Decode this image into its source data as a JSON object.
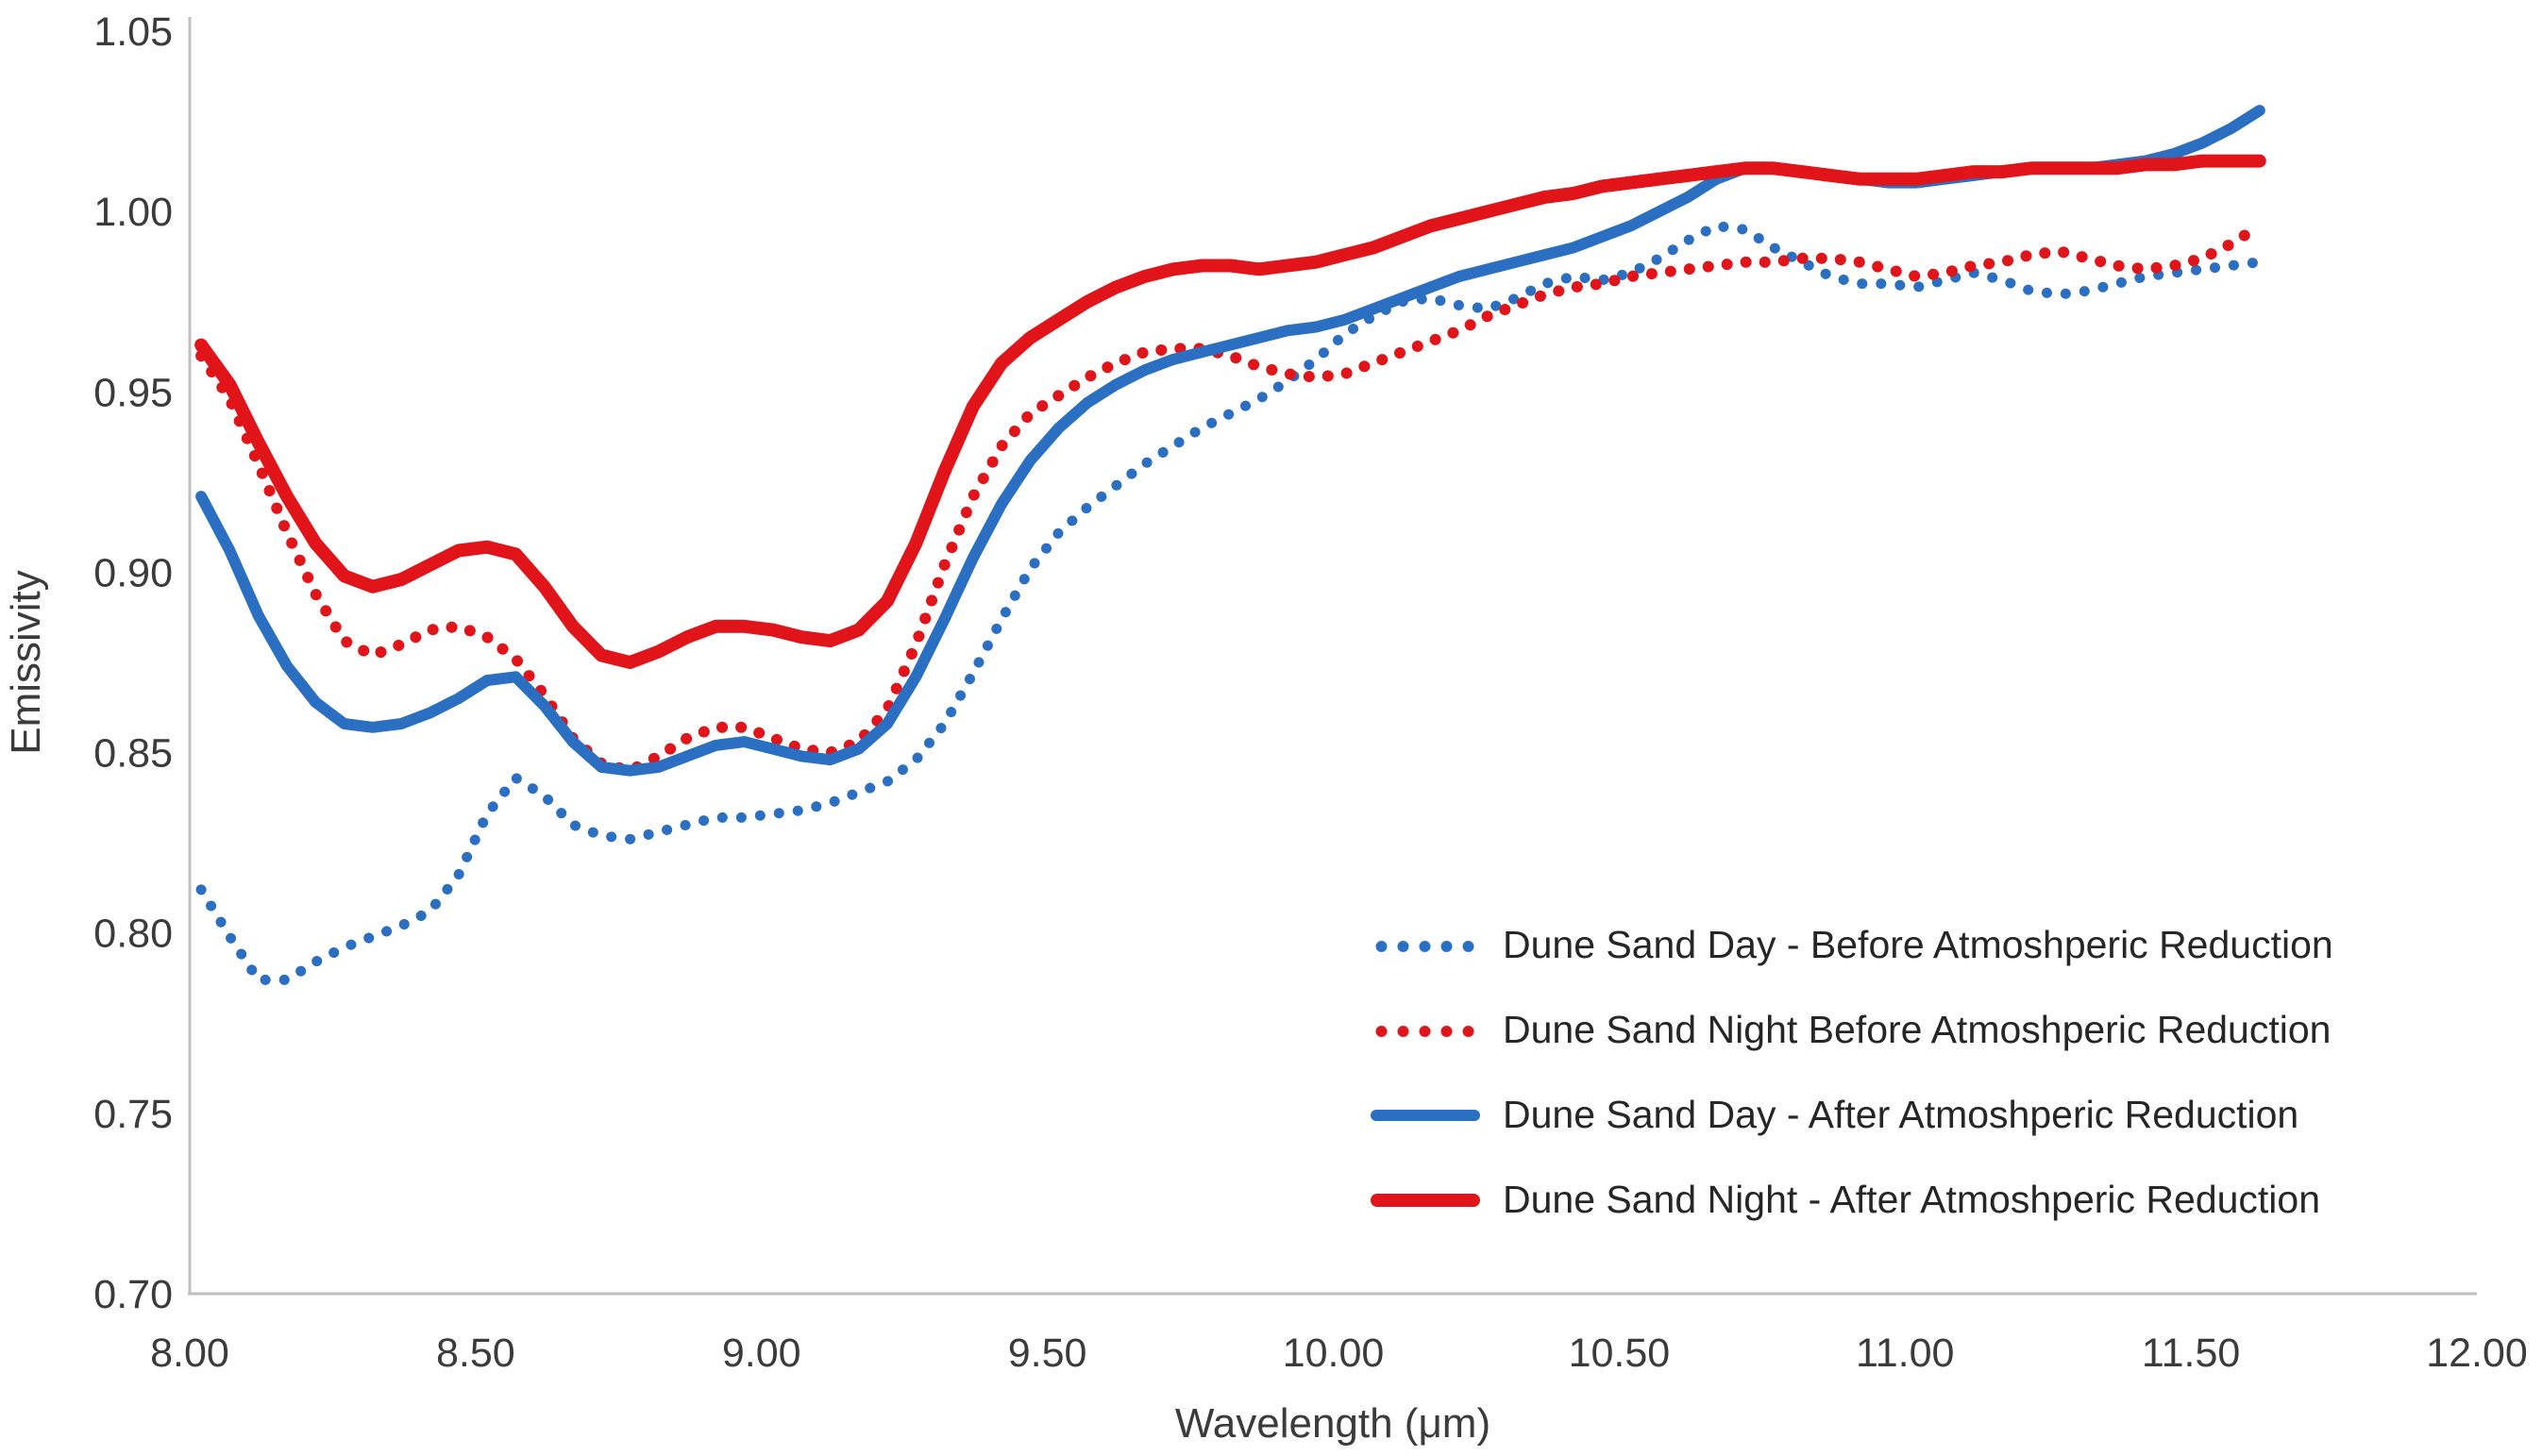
{
  "chart_data": {
    "type": "line",
    "title": "",
    "xlabel": "Wavelength (μm)",
    "ylabel": "Emissivity",
    "xlim": [
      8.0,
      12.0
    ],
    "ylim": [
      0.7,
      1.05
    ],
    "grid": false,
    "legend_position": "right-center",
    "x_ticks": [
      "8.00",
      "8.50",
      "9.00",
      "9.50",
      "10.00",
      "10.50",
      "11.00",
      "11.50",
      "12.00"
    ],
    "y_ticks": [
      "0.70",
      "0.75",
      "0.80",
      "0.85",
      "0.90",
      "0.95",
      "1.00",
      "1.05"
    ],
    "x": [
      8.02,
      8.07,
      8.12,
      8.17,
      8.22,
      8.27,
      8.32,
      8.37,
      8.42,
      8.47,
      8.52,
      8.57,
      8.62,
      8.67,
      8.72,
      8.77,
      8.82,
      8.87,
      8.92,
      8.97,
      9.02,
      9.07,
      9.12,
      9.17,
      9.22,
      9.27,
      9.32,
      9.37,
      9.42,
      9.47,
      9.52,
      9.57,
      9.62,
      9.67,
      9.72,
      9.77,
      9.82,
      9.87,
      9.92,
      9.97,
      10.02,
      10.07,
      10.12,
      10.17,
      10.22,
      10.27,
      10.32,
      10.37,
      10.42,
      10.47,
      10.52,
      10.57,
      10.62,
      10.67,
      10.72,
      10.77,
      10.82,
      10.87,
      10.92,
      10.97,
      11.02,
      11.07,
      11.12,
      11.17,
      11.22,
      11.27,
      11.32,
      11.37,
      11.42,
      11.47,
      11.52,
      11.57,
      11.62
    ],
    "series": [
      {
        "name": "Dune Sand Day - Before Atmoshperic Reduction",
        "color": "#2b6fc3",
        "line_style": "dotted",
        "width": 11,
        "values": [
          0.812,
          0.799,
          0.787,
          0.787,
          0.792,
          0.796,
          0.799,
          0.802,
          0.806,
          0.816,
          0.833,
          0.843,
          0.838,
          0.83,
          0.827,
          0.826,
          0.828,
          0.83,
          0.832,
          0.832,
          0.833,
          0.834,
          0.836,
          0.839,
          0.842,
          0.848,
          0.858,
          0.872,
          0.887,
          0.901,
          0.911,
          0.918,
          0.924,
          0.93,
          0.935,
          0.94,
          0.944,
          0.948,
          0.953,
          0.959,
          0.966,
          0.971,
          0.975,
          0.976,
          0.974,
          0.973,
          0.976,
          0.98,
          0.982,
          0.981,
          0.983,
          0.987,
          0.992,
          0.996,
          0.995,
          0.99,
          0.986,
          0.982,
          0.98,
          0.98,
          0.979,
          0.981,
          0.983,
          0.981,
          0.978,
          0.977,
          0.978,
          0.98,
          0.982,
          0.983,
          0.984,
          0.985,
          0.986
        ]
      },
      {
        "name": "Dune Sand Night Before Atmoshperic Reduction",
        "color": "#e01419",
        "line_style": "dotted",
        "width": 12,
        "values": [
          0.96,
          0.948,
          0.93,
          0.911,
          0.894,
          0.881,
          0.877,
          0.88,
          0.884,
          0.885,
          0.882,
          0.876,
          0.866,
          0.854,
          0.847,
          0.845,
          0.849,
          0.854,
          0.857,
          0.857,
          0.854,
          0.851,
          0.85,
          0.853,
          0.862,
          0.88,
          0.902,
          0.921,
          0.935,
          0.944,
          0.949,
          0.954,
          0.958,
          0.961,
          0.962,
          0.962,
          0.96,
          0.957,
          0.955,
          0.954,
          0.955,
          0.958,
          0.961,
          0.964,
          0.967,
          0.971,
          0.974,
          0.977,
          0.979,
          0.98,
          0.982,
          0.983,
          0.984,
          0.985,
          0.986,
          0.986,
          0.987,
          0.987,
          0.986,
          0.984,
          0.982,
          0.983,
          0.985,
          0.986,
          0.988,
          0.989,
          0.987,
          0.985,
          0.984,
          0.985,
          0.987,
          0.991,
          0.996
        ]
      },
      {
        "name": "Dune Sand Day - After Atmoshperic Reduction",
        "color": "#2b6fc3",
        "line_style": "solid",
        "width": 12,
        "values": [
          0.921,
          0.906,
          0.888,
          0.874,
          0.864,
          0.858,
          0.857,
          0.858,
          0.861,
          0.865,
          0.87,
          0.871,
          0.863,
          0.853,
          0.846,
          0.845,
          0.846,
          0.849,
          0.852,
          0.853,
          0.851,
          0.849,
          0.848,
          0.851,
          0.858,
          0.871,
          0.887,
          0.904,
          0.919,
          0.931,
          0.94,
          0.947,
          0.952,
          0.956,
          0.959,
          0.961,
          0.963,
          0.965,
          0.967,
          0.968,
          0.97,
          0.973,
          0.976,
          0.979,
          0.982,
          0.984,
          0.986,
          0.988,
          0.99,
          0.993,
          0.996,
          1.0,
          1.004,
          1.009,
          1.012,
          1.012,
          1.011,
          1.01,
          1.009,
          1.008,
          1.008,
          1.009,
          1.01,
          1.011,
          1.012,
          1.012,
          1.012,
          1.013,
          1.014,
          1.016,
          1.019,
          1.023,
          1.028
        ]
      },
      {
        "name": "Dune Sand Night - After Atmoshperic Reduction",
        "color": "#e01419",
        "line_style": "solid",
        "width": 14,
        "values": [
          0.963,
          0.952,
          0.936,
          0.921,
          0.908,
          0.899,
          0.896,
          0.898,
          0.902,
          0.906,
          0.907,
          0.905,
          0.896,
          0.885,
          0.877,
          0.875,
          0.878,
          0.882,
          0.885,
          0.885,
          0.884,
          0.882,
          0.881,
          0.884,
          0.892,
          0.908,
          0.928,
          0.946,
          0.958,
          0.965,
          0.97,
          0.975,
          0.979,
          0.982,
          0.984,
          0.985,
          0.985,
          0.984,
          0.985,
          0.986,
          0.988,
          0.99,
          0.993,
          0.996,
          0.998,
          1.0,
          1.002,
          1.004,
          1.005,
          1.007,
          1.008,
          1.009,
          1.01,
          1.011,
          1.012,
          1.012,
          1.011,
          1.01,
          1.009,
          1.009,
          1.009,
          1.01,
          1.011,
          1.011,
          1.012,
          1.012,
          1.012,
          1.012,
          1.013,
          1.013,
          1.014,
          1.014,
          1.014
        ]
      }
    ],
    "axis_color": "#bfbfbf",
    "text_color": "#3b3b3b"
  }
}
